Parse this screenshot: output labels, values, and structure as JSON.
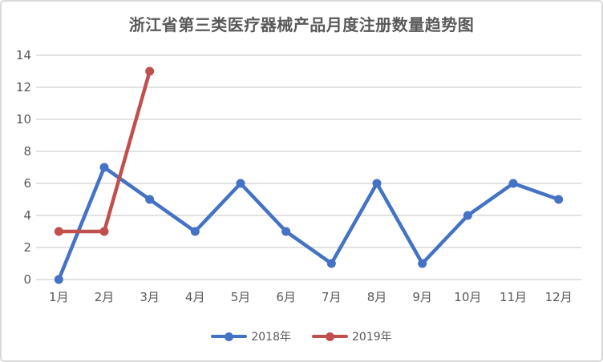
{
  "chart_data": {
    "type": "line",
    "title": "浙江省第三类医疗器械产品月度注册数量趋势图",
    "categories": [
      "1月",
      "2月",
      "3月",
      "4月",
      "5月",
      "6月",
      "7月",
      "8月",
      "9月",
      "10月",
      "11月",
      "12月"
    ],
    "series": [
      {
        "name": "2018年",
        "color": "#4472c4",
        "values": [
          0,
          7,
          5,
          3,
          6,
          3,
          1,
          6,
          1,
          4,
          6,
          5
        ]
      },
      {
        "name": "2019年",
        "color": "#c0504d",
        "values": [
          3,
          3,
          13
        ]
      }
    ],
    "y_ticks": [
      0,
      2,
      4,
      6,
      8,
      10,
      12,
      14
    ],
    "ylim": [
      0,
      14
    ],
    "xlabel": "",
    "ylabel": "",
    "grid": "horizontal",
    "legend_position": "bottom",
    "grid_color": "#d9d9d9",
    "tick_label_color": "#595959",
    "frame_border_color": "#d9d9d9"
  }
}
